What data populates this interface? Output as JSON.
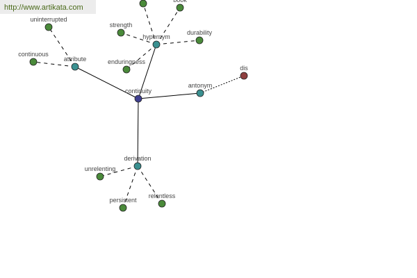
{
  "watermark": "http://www.artikata.com",
  "colors": {
    "root": "#3f3f8f",
    "relation": "#3a9090",
    "word": "#4a8a3a",
    "antonym_word": "#8f3f3f",
    "edge": "#000000"
  },
  "nodes": [
    {
      "id": "continuity",
      "label": "continuity",
      "kind": "root"
    },
    {
      "id": "attribute",
      "label": "attribute",
      "kind": "relation"
    },
    {
      "id": "hypernym",
      "label": "hypernym",
      "kind": "relation"
    },
    {
      "id": "antonym",
      "label": "antonym",
      "kind": "relation"
    },
    {
      "id": "derivation",
      "label": "derivation",
      "kind": "relation"
    },
    {
      "id": "uninterrupted",
      "label": "uninterrupted",
      "kind": "word"
    },
    {
      "id": "continuous",
      "label": "continuous",
      "kind": "word"
    },
    {
      "id": "strength",
      "label": "strength",
      "kind": "word"
    },
    {
      "id": "enduringness",
      "label": "enduringness",
      "kind": "word"
    },
    {
      "id": "durability",
      "label": "durability",
      "kind": "word"
    },
    {
      "id": "book",
      "label": "book",
      "kind": "word"
    },
    {
      "id": "top",
      "label": "",
      "kind": "word"
    },
    {
      "id": "dis",
      "label": "dis",
      "kind": "antonym_word"
    },
    {
      "id": "unrelenting",
      "label": "unrelenting",
      "kind": "word"
    },
    {
      "id": "persistent",
      "label": "persistent",
      "kind": "word"
    },
    {
      "id": "relentless",
      "label": "relentless",
      "kind": "word"
    }
  ],
  "edges": [
    {
      "from": "continuity",
      "to": "attribute",
      "style": "solid"
    },
    {
      "from": "continuity",
      "to": "hypernym",
      "style": "solid"
    },
    {
      "from": "continuity",
      "to": "antonym",
      "style": "solid"
    },
    {
      "from": "continuity",
      "to": "derivation",
      "style": "solid"
    },
    {
      "from": "attribute",
      "to": "uninterrupted",
      "style": "dashed"
    },
    {
      "from": "attribute",
      "to": "continuous",
      "style": "dashed"
    },
    {
      "from": "hypernym",
      "to": "strength",
      "style": "dashed"
    },
    {
      "from": "hypernym",
      "to": "enduringness",
      "style": "dashed"
    },
    {
      "from": "hypernym",
      "to": "durability",
      "style": "dashed"
    },
    {
      "from": "hypernym",
      "to": "book",
      "style": "dashed"
    },
    {
      "from": "hypernym",
      "to": "top",
      "style": "dashed"
    },
    {
      "from": "antonym",
      "to": "dis",
      "style": "dotted"
    },
    {
      "from": "derivation",
      "to": "unrelenting",
      "style": "dashed"
    },
    {
      "from": "derivation",
      "to": "persistent",
      "style": "dashed"
    },
    {
      "from": "derivation",
      "to": "relentless",
      "style": "dashed"
    }
  ]
}
